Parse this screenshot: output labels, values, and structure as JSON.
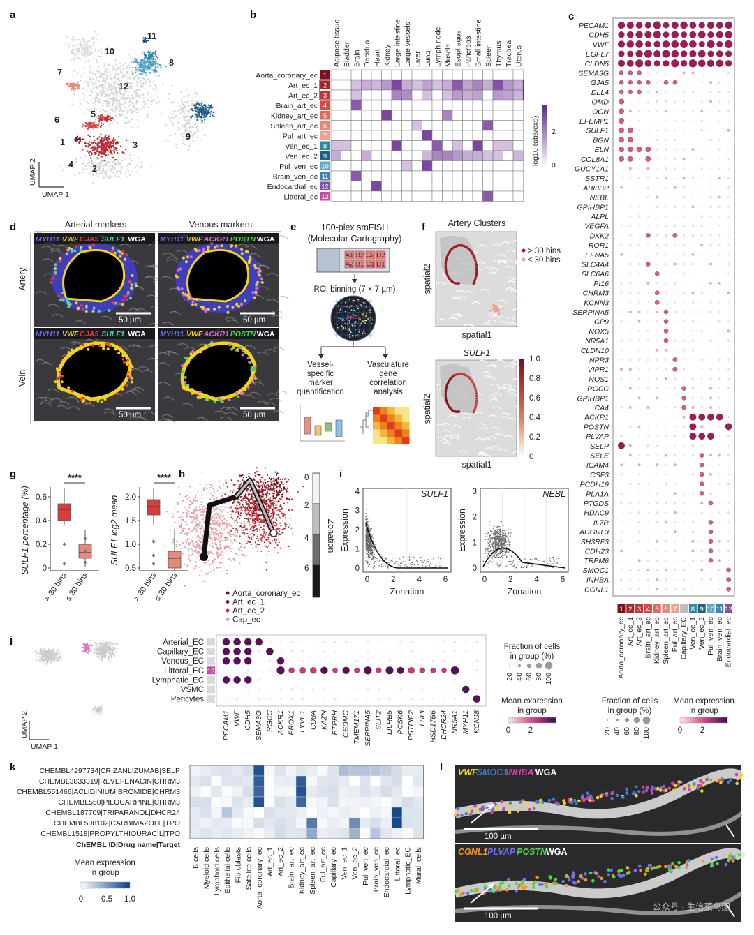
{
  "panels": {
    "a": {
      "letter": "a",
      "cluster_labels": [
        "1",
        "2",
        "3",
        "4",
        "5",
        "6",
        "7",
        "8",
        "9",
        "10",
        "11",
        "12"
      ],
      "axis_x": "UMAP 1",
      "axis_y": "UMAP 2"
    },
    "b": {
      "letter": "b",
      "cols": [
        "Adipose tissue",
        "Bladder",
        "Brain",
        "Decidua",
        "Heart",
        "Kidney",
        "Large intestine",
        "Large vessels",
        "Liver",
        "Lung",
        "Lymph node",
        "Muscle",
        "Esophagus",
        "Pancreas",
        "Small intestine",
        "Spleen",
        "Thymus",
        "Trachea",
        "Uterus"
      ],
      "rows": [
        "Aorta_coronary_ec",
        "Art_ec_1",
        "Art_ec_2",
        "Brain_art_ec",
        "Kidney_art_ec",
        "Spleen_art_ec",
        "Pul_art_ec",
        "Ven_ec_1",
        "Ven_ec_2",
        "Pul_ven_ec",
        "Brain_ven_ec",
        "Endocardial_ec",
        "Littoral_ec"
      ],
      "row_numbers": [
        "1",
        "2",
        "3",
        "4",
        "5",
        "6",
        "7",
        "8",
        "9",
        "10",
        "11",
        "12",
        "13"
      ],
      "row_colors": [
        "#7a1220",
        "#a3262c",
        "#c0343a",
        "#d24b48",
        "#de6a5e",
        "#e58976",
        "#e9a38c",
        "#2f86a6",
        "#1d5f86",
        "#5ea9c8",
        "#3f7fb2",
        "#7c4fa3",
        "#c24f9e"
      ],
      "colorbar_title": "log10 (obs/exp)",
      "colorbar_ticks": [
        "2",
        "0"
      ]
    },
    "c": {
      "letter": "c",
      "genes": [
        "PECAM1",
        "CDH5",
        "VWF",
        "EGFL7",
        "CLDN5",
        "SEMA3G",
        "GJA5",
        "DLL4",
        "OMD",
        "OGN",
        "EFEMP1",
        "SULF1",
        "BGN",
        "ELN",
        "COL8A1",
        "GUCY1A1",
        "SSTR1",
        "ABI3BP",
        "NEBL",
        "GPIHBP1",
        "ALPL",
        "VEGFA",
        "DKK2",
        "ROR1",
        "EFNA5",
        "SLC4A4",
        "SLC6A6",
        "PI16",
        "CHRM3",
        "KCNN3",
        "SERPINA5",
        "GP9",
        "NOX5",
        "NR5A1",
        "CLDN10",
        "NPR3",
        "VIPR1",
        "NOS1",
        "RGCC",
        "GPIHBP1",
        "CA4",
        "ACKR1",
        "POSTN",
        "PLVAP",
        "SELP",
        "SELE",
        "ICAM4",
        "CSF3",
        "PCDH19",
        "PLA1A",
        "PTGDS",
        "HDAC9",
        "IL7R",
        "ADGRL3",
        "SH3RF3",
        "CDH23",
        "TRPM6",
        "SMOC1",
        "INHBA",
        "CGNL1"
      ],
      "groups": [
        "Aorta_coronary_ec",
        "Art_ec_1",
        "Art_ec_2",
        "Brain_art_ec",
        "Kidney_art_ec",
        "Spleen_art_ec",
        "Pul_art_ec",
        "Capillary_EC",
        "Ven_ec_1",
        "Ven_ec_2",
        "Pul_ven_ec",
        "Brain_ven_ec",
        "Endocardial_ec"
      ],
      "group_numbers": [
        "1",
        "2",
        "3",
        "4",
        "5",
        "6",
        "7",
        "",
        "8",
        "9",
        "10",
        "11",
        "12"
      ],
      "group_colors": [
        "#7a1220",
        "#a3262c",
        "#c0343a",
        "#d24b48",
        "#de6a5e",
        "#e58976",
        "#e9a38c",
        "#bdbdbd",
        "#2f86a6",
        "#1d5f86",
        "#5ea9c8",
        "#3f7fb2",
        "#7c4fa3"
      ]
    },
    "d": {
      "letter": "d",
      "col_titles": [
        "Arterial markers",
        "Venous markers"
      ],
      "row_titles": [
        "Artery",
        "Vein"
      ],
      "arterial_legend": [
        "MYH11",
        "VWF",
        "GJA5",
        "SULF1",
        "WGA"
      ],
      "venous_legend": [
        "MYH11",
        "VWF",
        "ACKR1",
        "POSTN",
        "WGA"
      ],
      "legend_colors": [
        "#6f6ff2",
        "#f2d21c",
        "#e23c3c",
        "#4fd0c0",
        "#ffffff"
      ],
      "venous_colors": [
        "#6f6ff2",
        "#f2d21c",
        "#d96ad9",
        "#4fd64f",
        "#ffffff"
      ],
      "scale_bar": "50 µm"
    },
    "e": {
      "letter": "e",
      "title_1": "100-plex smFISH",
      "title_2": "(Molecular Cartography)",
      "roi_labels": [
        "A1",
        "B2",
        "C2",
        "D2",
        "A2",
        "B1",
        "C1",
        "D1"
      ],
      "step_1": "ROI binning (7 × 7 µm)",
      "left_branch": [
        "Vessel-",
        "specific",
        "marker",
        "quantification"
      ],
      "right_branch": [
        "Vasculature",
        "gene",
        "correlation",
        "analysis"
      ]
    },
    "f": {
      "letter": "f",
      "title_top": "Artery Clusters",
      "legend": [
        "> 30 bins",
        "≤ 30 bins"
      ],
      "legend_colors": [
        "#a3192a",
        "#e9a38c"
      ],
      "axis_x": "spatial1",
      "axis_y": "spatial2",
      "title_bottom": "SULF1",
      "colorbar_ticks": [
        "1.0",
        "0.8",
        "0.6",
        "0.4",
        "0.2",
        "0"
      ]
    },
    "g": {
      "letter": "g",
      "significance": "****",
      "ylabel_left": "SULF1 percentage (%)",
      "ylabel_right": "SULF1 log2 mean",
      "yticks_left": [
        "0.6",
        "0.4",
        "0.2",
        "0"
      ],
      "yticks_right": [
        "2.0",
        "1.5",
        "1.0",
        "0.5"
      ],
      "xcats": [
        "> 30 bins",
        "≤ 30 bins"
      ]
    },
    "h": {
      "letter": "h",
      "legend": [
        "Aorta_coronary_ec",
        "Art_ec_1",
        "Art_ec_2",
        "Cap_ec"
      ],
      "legend_colors": [
        "#6b0d18",
        "#8e1b24",
        "#c0343a",
        "#e9a0a6"
      ],
      "colorbar_title": "Zonation",
      "colorbar_ticks": [
        "0",
        "2",
        "4",
        "6"
      ]
    },
    "i": {
      "letter": "i",
      "plots": [
        {
          "gene": "SULF1",
          "yticks": [
            "4",
            "3",
            "2",
            "1",
            "0"
          ],
          "xticks": [
            "0",
            "2",
            "4",
            "6"
          ]
        },
        {
          "gene": "NEBL",
          "yticks": [
            "3",
            "2",
            "1",
            "0"
          ],
          "xticks": [
            "0",
            "2",
            "4",
            "6"
          ]
        }
      ],
      "xlabel": "Zonation",
      "ylabel": "Expression"
    },
    "j": {
      "letter": "j",
      "groups": [
        "Arterial_EC",
        "Capillary_EC",
        "Venous_EC",
        "Littoral_EC",
        "Lymphatic_EC",
        "VSMC",
        "Pericytes"
      ],
      "littoral_number": "13",
      "genes": [
        "PECAM1",
        "VWF",
        "CDH5",
        "SEMA3G",
        "RGCC",
        "ACKR1",
        "PROX1",
        "LYVE1",
        "CD8A",
        "KAZN",
        "PTPRH",
        "GSDMC",
        "TMEM171",
        "SERPINA5",
        "SLIT2",
        "LILRB5",
        "PCSK6",
        "PSTPIP2",
        "LSPI",
        "HSD17B6",
        "DHCR24",
        "NR5A1",
        "MYH11",
        "KCNJ8"
      ],
      "frac_title_1": "Fraction of cells",
      "frac_title_2": "in group (%)",
      "frac_ticks": [
        "20",
        "40",
        "60",
        "80",
        "100"
      ],
      "mean_title_1": "Mean expression",
      "mean_title_2": "in group",
      "mean_ticks": [
        "0",
        "2"
      ],
      "axis_x": "UMAP 1",
      "axis_y": "UMAP 2"
    },
    "k": {
      "letter": "k",
      "rows": [
        "CHEMBL4297734|CRIZANLIZUMAB|SELP",
        "CHEMBL3833319|REVEFENACIN|CHRM3",
        "CHEMBL551466|ACLIDINIUM BROMIDE|CHRM3",
        "CHEMBL550|PILOCARPINE|CHRM3",
        "CHEMBL187709|TRIPARANOL|DHCR24",
        "CHEMBL508102|CARBIMAZOLE|TPO",
        "CHEMBL1518|PROPYLTHIOURACIL|TPO"
      ],
      "header": "ChEMBL ID|Drug name|Target",
      "cols": [
        "B cells",
        "Myeloid cells",
        "Lymphoid cells",
        "Epithelial cells",
        "Fibroblasts",
        "Satellite cells",
        "Aorta_coronary_ec",
        "Art_ec_1",
        "Art_ec_2",
        "Brain_art_ec",
        "Kidney_art_ec",
        "Spleen_art_ec",
        "Pul_art_ec",
        "Capillary_ec",
        "Ven_ec_1",
        "Ven_ec_2",
        "Pul_ven_ec",
        "Brain_ven_ec",
        "Endocardial_ec",
        "Littoral_ec",
        "Lymphatic_EC",
        "Mural_cells"
      ],
      "legend_title_1": "Mean expression",
      "legend_title_2": "in group",
      "legend_ticks": [
        "0",
        "0.5",
        "1.0"
      ]
    },
    "l": {
      "letter": "l",
      "top_legend": [
        "VWF",
        "SMOC1",
        "INHBA",
        "WGA"
      ],
      "top_colors": [
        "#f2d21c",
        "#3f7fd8",
        "#d43fa8",
        "#ffffff"
      ],
      "bottom_legend": [
        "CGNL1",
        "PLVAP",
        "POSTN",
        "WGA"
      ],
      "bottom_colors": [
        "#f29a1c",
        "#6f6ff2",
        "#4fd64f",
        "#ffffff"
      ],
      "scale_bar": "100 µm",
      "watermark": "公众号 · 生信菜鸟团"
    }
  }
}
